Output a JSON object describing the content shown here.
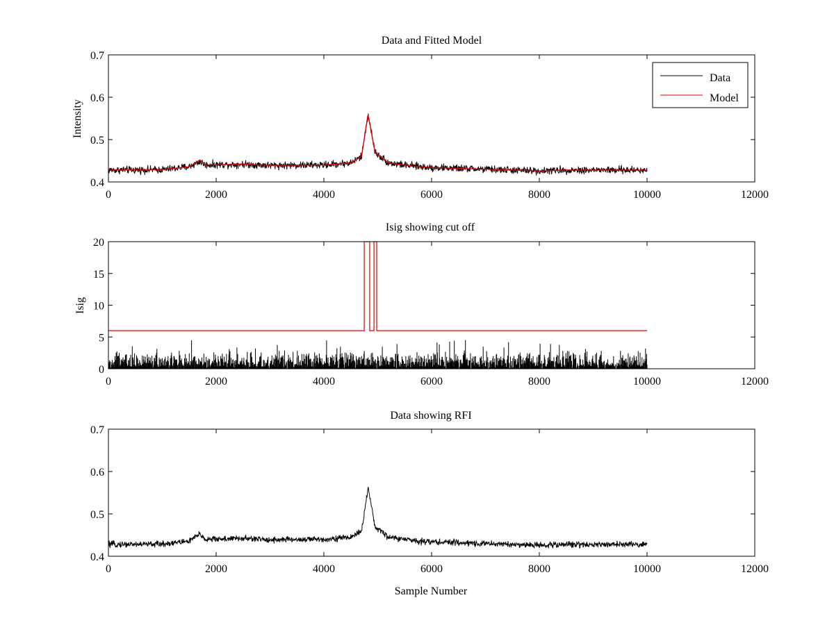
{
  "figure": {
    "background": "#ffffff"
  },
  "chart_data": [
    {
      "id": "fit",
      "type": "line",
      "title": "Data and Fitted Model",
      "xlabel": "",
      "ylabel": "Intensity",
      "xlim": [
        0,
        12000
      ],
      "ylim": [
        0.4,
        0.7
      ],
      "xticks": [
        0,
        2000,
        4000,
        6000,
        8000,
        10000,
        12000
      ],
      "xtick_labels": [
        "0",
        "2000",
        "4000",
        "6000",
        "8000",
        "10000",
        "12000"
      ],
      "yticks": [
        0.4,
        0.5,
        0.6,
        0.7
      ],
      "ytick_labels": [
        "0.4",
        "0.5",
        "0.6",
        "0.7"
      ],
      "legend": {
        "location": "top-right",
        "entries": [
          "Data",
          "Model"
        ]
      },
      "series": [
        {
          "name": "Data",
          "color": "#000000",
          "kind": "noisy",
          "x_range": [
            0,
            10000
          ],
          "noise": 0.0055,
          "baseline_points": [
            [
              0,
              0.428
            ],
            [
              1000,
              0.429
            ],
            [
              1500,
              0.436
            ],
            [
              1700,
              0.448
            ],
            [
              1800,
              0.44
            ],
            [
              2500,
              0.442
            ],
            [
              3000,
              0.439
            ],
            [
              4000,
              0.44
            ],
            [
              4500,
              0.445
            ],
            [
              4700,
              0.46
            ],
            [
              4820,
              0.56
            ],
            [
              4950,
              0.47
            ],
            [
              5200,
              0.445
            ],
            [
              5600,
              0.438
            ],
            [
              6000,
              0.434
            ],
            [
              7000,
              0.43
            ],
            [
              8000,
              0.426
            ],
            [
              8500,
              0.428
            ],
            [
              9000,
              0.428
            ],
            [
              10000,
              0.428
            ]
          ]
        },
        {
          "name": "Model",
          "color": "#e00000",
          "kind": "smooth",
          "x_range": [
            0,
            10000
          ],
          "points": [
            [
              0,
              0.428
            ],
            [
              1000,
              0.429
            ],
            [
              1500,
              0.436
            ],
            [
              1700,
              0.452
            ],
            [
              1800,
              0.44
            ],
            [
              2500,
              0.442
            ],
            [
              3000,
              0.439
            ],
            [
              4000,
              0.44
            ],
            [
              4500,
              0.445
            ],
            [
              4700,
              0.46
            ],
            [
              4820,
              0.56
            ],
            [
              4950,
              0.47
            ],
            [
              5200,
              0.445
            ],
            [
              5600,
              0.438
            ],
            [
              6000,
              0.434
            ],
            [
              7000,
              0.43
            ],
            [
              8000,
              0.426
            ],
            [
              8500,
              0.428
            ],
            [
              9000,
              0.428
            ],
            [
              10000,
              0.428
            ]
          ]
        }
      ]
    },
    {
      "id": "isig",
      "type": "line",
      "title": "Isig showing cut off",
      "xlabel": "",
      "ylabel": "Isig",
      "xlim": [
        0,
        12000
      ],
      "ylim": [
        0,
        20
      ],
      "xticks": [
        0,
        2000,
        4000,
        6000,
        8000,
        10000,
        12000
      ],
      "xtick_labels": [
        "0",
        "2000",
        "4000",
        "6000",
        "8000",
        "10000",
        "12000"
      ],
      "yticks": [
        0,
        5,
        10,
        15,
        20
      ],
      "ytick_labels": [
        "0",
        "5",
        "10",
        "15",
        "20"
      ],
      "series": [
        {
          "name": "Isig",
          "color": "#000000",
          "kind": "spikes",
          "x_range": [
            0,
            10000
          ],
          "typical_max": 3.0,
          "peak_max": 4.5
        },
        {
          "name": "Cut off",
          "color": "#e00000",
          "kind": "step",
          "points": [
            [
              0,
              6
            ],
            [
              4750,
              6
            ],
            [
              4750,
              20
            ],
            [
              4850,
              20
            ],
            [
              4850,
              6
            ],
            [
              4930,
              6
            ],
            [
              4930,
              20
            ],
            [
              4980,
              20
            ],
            [
              4980,
              6
            ],
            [
              10000,
              6
            ]
          ]
        }
      ]
    },
    {
      "id": "rfi",
      "type": "line",
      "title": "Data showing RFI",
      "xlabel": "Sample Number",
      "ylabel": "",
      "xlim": [
        0,
        12000
      ],
      "ylim": [
        0.4,
        0.7
      ],
      "xticks": [
        0,
        2000,
        4000,
        6000,
        8000,
        10000,
        12000
      ],
      "xtick_labels": [
        "0",
        "2000",
        "4000",
        "6000",
        "8000",
        "10000",
        "12000"
      ],
      "yticks": [
        0.4,
        0.5,
        0.6,
        0.7
      ],
      "ytick_labels": [
        "0.4",
        "0.5",
        "0.6",
        "0.7"
      ],
      "series": [
        {
          "name": "Data",
          "color": "#000000",
          "kind": "noisy",
          "x_range": [
            0,
            10000
          ],
          "noise": 0.0045,
          "baseline_points": [
            [
              0,
              0.428
            ],
            [
              1000,
              0.429
            ],
            [
              1500,
              0.436
            ],
            [
              1700,
              0.452
            ],
            [
              1800,
              0.44
            ],
            [
              2500,
              0.442
            ],
            [
              3000,
              0.439
            ],
            [
              4000,
              0.44
            ],
            [
              4500,
              0.445
            ],
            [
              4700,
              0.46
            ],
            [
              4820,
              0.56
            ],
            [
              4950,
              0.47
            ],
            [
              5200,
              0.445
            ],
            [
              5600,
              0.438
            ],
            [
              6000,
              0.434
            ],
            [
              7000,
              0.43
            ],
            [
              8000,
              0.426
            ],
            [
              8500,
              0.428
            ],
            [
              9000,
              0.428
            ],
            [
              10000,
              0.428
            ]
          ]
        }
      ]
    }
  ]
}
